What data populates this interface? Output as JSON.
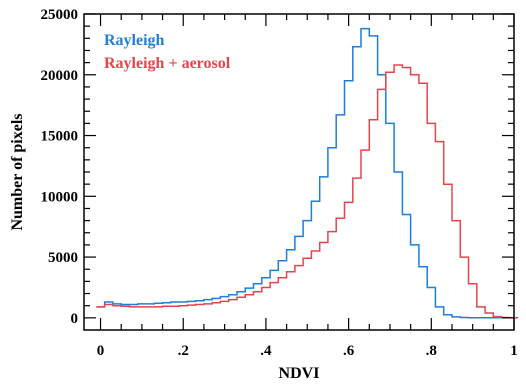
{
  "chart_data": {
    "type": "line",
    "title": "",
    "xlabel": "NDVI",
    "ylabel": "Number of pixels",
    "xlim": [
      -0.04,
      1.0
    ],
    "ylim": [
      -1000,
      25000
    ],
    "x_ticks": [
      {
        "value": 0,
        "label": "0"
      },
      {
        "value": 0.2,
        "label": ".2"
      },
      {
        "value": 0.4,
        "label": ".4"
      },
      {
        "value": 0.6,
        "label": ".6"
      },
      {
        "value": 0.8,
        "label": ".8"
      },
      {
        "value": 1.0,
        "label": "1"
      }
    ],
    "y_ticks": [
      {
        "value": 0,
        "label": "0"
      },
      {
        "value": 5000,
        "label": "5000"
      },
      {
        "value": 10000,
        "label": "10000"
      },
      {
        "value": 15000,
        "label": "15000"
      },
      {
        "value": 20000,
        "label": "20000"
      },
      {
        "value": 25000,
        "label": "25000"
      }
    ],
    "legend_placement": "top-left",
    "step_style": "histogram",
    "x": [
      0.0,
      0.02,
      0.04,
      0.06,
      0.08,
      0.1,
      0.12,
      0.14,
      0.16,
      0.18,
      0.2,
      0.22,
      0.24,
      0.26,
      0.28,
      0.3,
      0.32,
      0.34,
      0.36,
      0.38,
      0.4,
      0.42,
      0.44,
      0.46,
      0.48,
      0.5,
      0.52,
      0.54,
      0.56,
      0.58,
      0.6,
      0.62,
      0.64,
      0.66,
      0.68,
      0.7,
      0.72,
      0.74,
      0.76,
      0.78,
      0.8,
      0.82,
      0.84,
      0.86,
      0.88,
      0.9,
      0.92,
      0.94,
      0.96,
      0.98,
      1.0
    ],
    "series": [
      {
        "name": "Rayleigh",
        "color": "#1e7fd8",
        "values": [
          900,
          1300,
          1150,
          1100,
          1100,
          1150,
          1150,
          1200,
          1250,
          1300,
          1300,
          1350,
          1400,
          1500,
          1600,
          1750,
          1900,
          2150,
          2450,
          2800,
          3300,
          3900,
          4700,
          5600,
          6700,
          8000,
          9600,
          11600,
          14000,
          16700,
          19500,
          22300,
          23800,
          23200,
          20000,
          16000,
          12000,
          8500,
          6000,
          4200,
          2500,
          900,
          250,
          80,
          30,
          10,
          0,
          0,
          0,
          0,
          0
        ]
      },
      {
        "name": "Rayleigh + aerosol",
        "color": "#e5454b",
        "values": [
          900,
          1100,
          1000,
          950,
          900,
          900,
          900,
          900,
          950,
          950,
          1000,
          1050,
          1100,
          1150,
          1250,
          1350,
          1500,
          1700,
          1900,
          2150,
          2500,
          2900,
          3300,
          3800,
          4300,
          4900,
          5500,
          6200,
          7100,
          8200,
          9500,
          11500,
          13800,
          16300,
          18800,
          20200,
          20800,
          20600,
          20000,
          19300,
          16000,
          14500,
          11000,
          8000,
          5000,
          2800,
          900,
          400,
          100,
          30,
          0
        ]
      }
    ]
  }
}
